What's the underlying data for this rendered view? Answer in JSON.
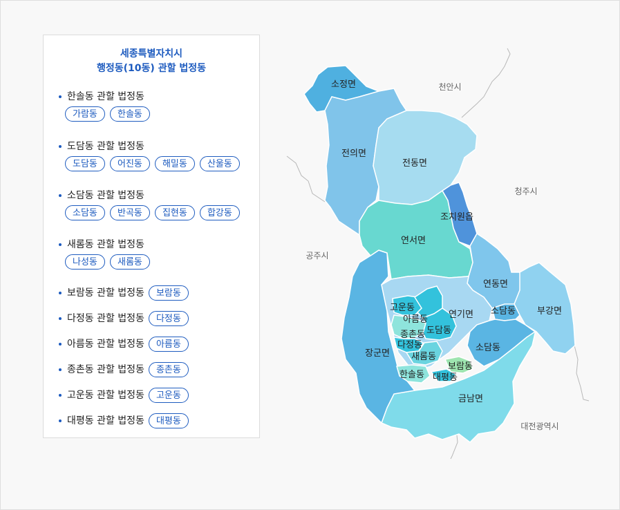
{
  "panel": {
    "title_line1": "세종특별자치시",
    "title_line2": "행정동(10동) 관할 법정동",
    "groups": [
      {
        "title": "한솔동 관할 법정동",
        "chips": [
          "가람동",
          "한솔동"
        ]
      },
      {
        "title": "도담동 관할 법정동",
        "chips": [
          "도담동",
          "어진동",
          "해밀동",
          "산울동"
        ]
      },
      {
        "title": "소담동 관할 법정동",
        "chips": [
          "소담동",
          "반곡동",
          "집현동",
          "합강동"
        ]
      },
      {
        "title": "새롬동 관할 법정동",
        "chips": [
          "나성동",
          "새롬동"
        ]
      }
    ],
    "rows": [
      {
        "title": "보람동 관할 법정동",
        "chip": "보람동"
      },
      {
        "title": "다정동 관할 법정동",
        "chip": "다정동"
      },
      {
        "title": "아름동 관할 법정동",
        "chip": "아름동"
      },
      {
        "title": "종촌동 관할 법정동",
        "chip": "종촌동"
      },
      {
        "title": "고운동 관할 법정동",
        "chip": "고운동"
      },
      {
        "title": "대평동 관할 법정동",
        "chip": "대평동"
      }
    ]
  },
  "map": {
    "regions": {
      "sojeong": "소정면",
      "jeonui": "전의면",
      "jeondong": "전동면",
      "jochiwon": "조치원읍",
      "yeonseo": "연서면",
      "yeondong": "연동면",
      "bugang": "부강면",
      "janggun": "장군면",
      "yeongi": "연기면",
      "geumnam": "금남면",
      "goun": "고운동",
      "areum": "아름동",
      "dodam": "도담동",
      "jongchon": "종촌동",
      "dajeong": "다정동",
      "saerom": "새롬동",
      "hansol": "한솔동",
      "boram": "보람동",
      "daepyeong": "대평동",
      "sodam_north": "소담동",
      "sodam_south": "소담동"
    },
    "external": {
      "cheonan": "천안시",
      "cheongju": "청주시",
      "gongju": "공주시",
      "daejeon": "대전광역시"
    },
    "colors": {
      "sojeong": "#4fb0e0",
      "jeonui": "#80c4ea",
      "jeondong": "#a6dcf0",
      "jochiwon": "#4f93db",
      "yeonseo": "#68d8d0",
      "yeondong": "#7fc6ec",
      "bugang": "#90d2f0",
      "janggun": "#5ab5e3",
      "yeongi": "#a8d8f2",
      "geumnam": "#7fdbea",
      "new_city_dark": "#33c2dc",
      "jongchon": "#8ee4dc",
      "saerom": "#6ad4e0",
      "boram": "#9ee5b0"
    }
  }
}
